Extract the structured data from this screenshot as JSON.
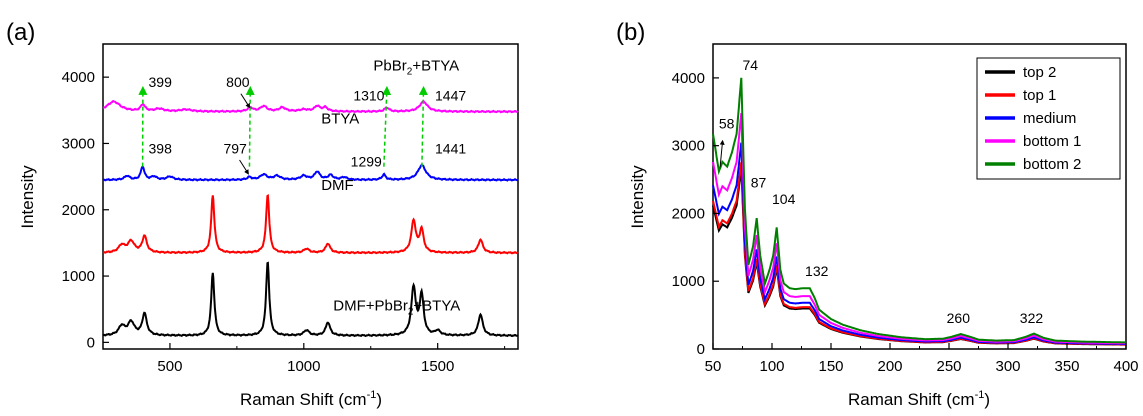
{
  "chart_data": [
    {
      "panel_label": "(a)",
      "type": "line",
      "xlabel_base": "Raman Shift (cm",
      "xlabel_sup": "-1",
      "xlabel_end": ")",
      "ylabel": "Intensity",
      "xlim": [
        250,
        1800
      ],
      "ylim": [
        -100,
        4500
      ],
      "xticks": [
        500,
        1000,
        1500
      ],
      "yticks": [
        0,
        1000,
        2000,
        3000,
        4000
      ],
      "grid": false,
      "series": [
        {
          "label_base": "DMF+PbBr",
          "label_sub": "2",
          "label_end": "+BTYA",
          "color": "#000000",
          "baseline": 100,
          "peaks": [
            [
              320,
              140,
              14
            ],
            [
              355,
              200,
              15
            ],
            [
              405,
              330,
              10
            ],
            [
              660,
              950,
              7
            ],
            [
              865,
              1120,
              7
            ],
            [
              1010,
              80,
              12
            ],
            [
              1090,
              200,
              10
            ],
            [
              1410,
              720,
              10
            ],
            [
              1440,
              600,
              9
            ],
            [
              1500,
              70,
              12
            ],
            [
              1660,
              320,
              10
            ]
          ]
        },
        {
          "label_base": "DMF",
          "label_sub": "",
          "label_end": "",
          "color": "#ff0000",
          "baseline": 1350,
          "peaks": [
            [
              320,
              110,
              14
            ],
            [
              355,
              170,
              15
            ],
            [
              405,
              250,
              10
            ],
            [
              660,
              870,
              7
            ],
            [
              865,
              880,
              7
            ],
            [
              1010,
              60,
              12
            ],
            [
              1090,
              140,
              10
            ],
            [
              1410,
              480,
              10
            ],
            [
              1440,
              340,
              9
            ],
            [
              1660,
              200,
              10
            ]
          ]
        },
        {
          "label_base": "BTYA",
          "label_sub": "",
          "label_end": "",
          "color": "#0000ff",
          "baseline": 2450,
          "peaks": [
            [
              340,
              60,
              12
            ],
            [
              398,
              200,
              8
            ],
            [
              440,
              50,
              12
            ],
            [
              500,
              50,
              15
            ],
            [
              797,
              40,
              10
            ],
            [
              850,
              80,
              15
            ],
            [
              900,
              60,
              15
            ],
            [
              1000,
              60,
              15
            ],
            [
              1050,
              120,
              12
            ],
            [
              1100,
              70,
              12
            ],
            [
              1150,
              40,
              12
            ],
            [
              1299,
              80,
              8
            ],
            [
              1441,
              220,
              18
            ]
          ]
        },
        {
          "label_base": "PbBr",
          "label_sub": "2",
          "label_end": "+BTYA",
          "color": "#ff00ff",
          "baseline": 3480,
          "peaks": [
            [
              290,
              150,
              30
            ],
            [
              399,
              100,
              10
            ],
            [
              460,
              40,
              20
            ],
            [
              560,
              30,
              25
            ],
            [
              800,
              60,
              12
            ],
            [
              850,
              80,
              15
            ],
            [
              920,
              60,
              15
            ],
            [
              1000,
              30,
              20
            ],
            [
              1050,
              80,
              12
            ],
            [
              1080,
              60,
              12
            ],
            [
              1310,
              60,
              10
            ],
            [
              1447,
              150,
              18
            ]
          ]
        }
      ],
      "annotations": [
        "399",
        "800",
        "1310",
        "1447",
        "398",
        "797",
        "1299",
        "1441"
      ],
      "arrow_pairs": [
        [
          398,
          399
        ],
        [
          797,
          800
        ],
        [
          1299,
          1310
        ],
        [
          1441,
          1447
        ]
      ]
    },
    {
      "panel_label": "(b)",
      "type": "line",
      "xlabel_base": "Raman Shift (cm",
      "xlabel_sup": "-1",
      "xlabel_end": ")",
      "ylabel": "Intensity",
      "xlim": [
        50,
        400
      ],
      "ylim": [
        0,
        4500
      ],
      "xticks": [
        50,
        100,
        150,
        200,
        250,
        300,
        350,
        400
      ],
      "yticks": [
        0,
        1000,
        2000,
        3000,
        4000
      ],
      "grid": false,
      "legend_position": "top-right",
      "series": [
        {
          "name": "top 2",
          "color": "#000000",
          "scale": 0.92,
          "offset": 0
        },
        {
          "name": "top 1",
          "color": "#ff0000",
          "scale": 0.95,
          "offset": 0
        },
        {
          "name": "medium",
          "color": "#0000ff",
          "scale": 1.05,
          "offset": 0
        },
        {
          "name": "bottom 1",
          "color": "#ff00ff",
          "scale": 1.2,
          "offset": 0
        },
        {
          "name": "bottom 2",
          "color": "#008000",
          "scale": 1.38,
          "offset": 0
        }
      ],
      "base_profile": {
        "x": [
          50,
          55,
          58,
          62,
          66,
          70,
          74,
          77,
          80,
          84,
          87,
          90,
          94,
          98,
          101,
          104,
          107,
          110,
          115,
          120,
          126,
          132,
          136,
          140,
          150,
          160,
          175,
          190,
          210,
          230,
          245,
          252,
          260,
          268,
          275,
          290,
          305,
          315,
          322,
          330,
          340,
          360,
          380,
          400
        ],
        "y": [
          2300,
          1900,
          2000,
          1950,
          2100,
          2300,
          2900,
          1500,
          900,
          1100,
          1400,
          1000,
          700,
          850,
          1000,
          1300,
          850,
          700,
          650,
          640,
          650,
          650,
          550,
          420,
          320,
          260,
          200,
          160,
          125,
          105,
          110,
          130,
          160,
          130,
          100,
          90,
          95,
          130,
          165,
          120,
          90,
          80,
          75,
          70
        ]
      },
      "annotations": [
        {
          "text": "74",
          "x": 74
        },
        {
          "text": "58",
          "x": 58
        },
        {
          "text": "87",
          "x": 87
        },
        {
          "text": "104",
          "x": 104
        },
        {
          "text": "132",
          "x": 132
        },
        {
          "text": "260",
          "x": 260
        },
        {
          "text": "322",
          "x": 322
        }
      ]
    }
  ]
}
